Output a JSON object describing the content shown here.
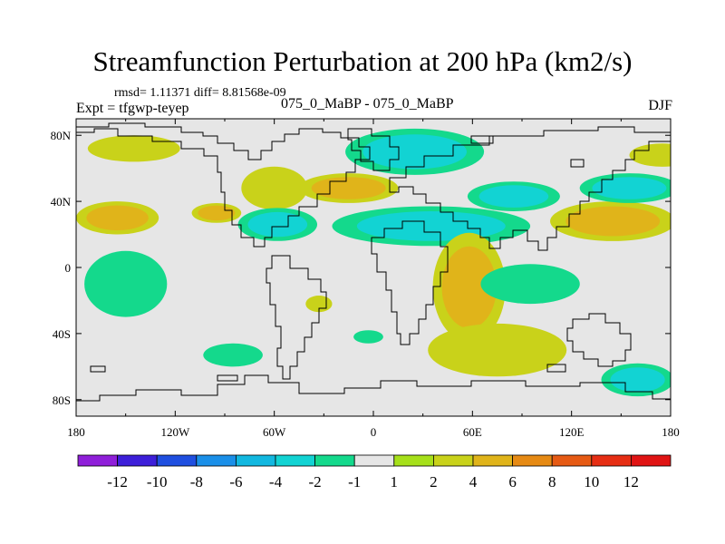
{
  "header": {
    "title": "Streamfunction Perturbation at 200 hPa (km2/s)",
    "stats": "rmsd= 1.11371  diff= 8.81568e-09",
    "experiment": "Expt = tfgwp-teyep",
    "case": "075_0_MaBP - 075_0_MaBP",
    "season": "DJF"
  },
  "chart_data": {
    "type": "heatmap",
    "title": "Streamfunction Perturbation at 200 hPa (km2/s)",
    "xlabel": "",
    "ylabel": "",
    "xlim": [
      -180,
      180
    ],
    "ylim": [
      -90,
      90
    ],
    "x_ticks": [
      -180,
      -120,
      -60,
      0,
      60,
      120,
      180
    ],
    "x_tick_labels": [
      "180",
      "120W",
      "60W",
      "0",
      "60E",
      "120E",
      "180"
    ],
    "y_ticks": [
      80,
      40,
      0,
      -40,
      -80
    ],
    "y_tick_labels": [
      "80N",
      "40N",
      "0",
      "40S",
      "80S"
    ],
    "background_color": "#e6e6e6",
    "colorbar": {
      "levels": [
        "-12",
        "-10",
        "-8",
        "-6",
        "-4",
        "-2",
        "-1",
        "1",
        "2",
        "4",
        "6",
        "8",
        "10",
        "12"
      ],
      "colors": [
        "#8f1fd9",
        "#3d1fd9",
        "#1f4fe0",
        "#1a8fe8",
        "#12b8e0",
        "#12d3d3",
        "#14d98c",
        "#e6e6e6",
        "#a6e01a",
        "#c9d21a",
        "#e0b41a",
        "#e68a14",
        "#e65a14",
        "#e62e14",
        "#e01414"
      ]
    },
    "anomalies": [
      {
        "lon": -155,
        "lat": 30,
        "rx": 25,
        "ry": 10,
        "levels": [
          "2",
          "4"
        ]
      },
      {
        "lon": -145,
        "lat": 72,
        "rx": 28,
        "ry": 8,
        "levels": [
          "2"
        ]
      },
      {
        "lon": -95,
        "lat": 33,
        "rx": 15,
        "ry": 6,
        "levels": [
          "2",
          "4"
        ]
      },
      {
        "lon": -60,
        "lat": 48,
        "rx": 20,
        "ry": 13,
        "levels": [
          "2"
        ]
      },
      {
        "lon": -15,
        "lat": 48,
        "rx": 30,
        "ry": 9,
        "levels": [
          "2",
          "4"
        ]
      },
      {
        "lon": -58,
        "lat": 26,
        "rx": 24,
        "ry": 10,
        "levels": [
          "-1",
          "-2"
        ]
      },
      {
        "lon": 25,
        "lat": 70,
        "rx": 42,
        "ry": 14,
        "levels": [
          "-1",
          "-2"
        ]
      },
      {
        "lon": 35,
        "lat": 25,
        "rx": 60,
        "ry": 12,
        "levels": [
          "-1",
          "-2"
        ]
      },
      {
        "lon": -150,
        "lat": -10,
        "rx": 25,
        "ry": 20,
        "levels": [
          "-1"
        ]
      },
      {
        "lon": -85,
        "lat": -53,
        "rx": 18,
        "ry": 7,
        "levels": [
          "-1"
        ]
      },
      {
        "lon": -33,
        "lat": -22,
        "rx": 8,
        "ry": 5,
        "levels": [
          "2"
        ]
      },
      {
        "lon": -3,
        "lat": -42,
        "rx": 9,
        "ry": 4,
        "levels": [
          "-1"
        ]
      },
      {
        "lon": 58,
        "lat": -12,
        "rx": 22,
        "ry": 33,
        "levels": [
          "2",
          "4"
        ]
      },
      {
        "lon": 75,
        "lat": -50,
        "rx": 42,
        "ry": 16,
        "levels": [
          "2"
        ]
      },
      {
        "lon": 85,
        "lat": 43,
        "rx": 28,
        "ry": 9,
        "levels": [
          "-1",
          "-2"
        ]
      },
      {
        "lon": 95,
        "lat": -10,
        "rx": 30,
        "ry": 12,
        "levels": [
          "-1"
        ]
      },
      {
        "lon": 145,
        "lat": 28,
        "rx": 38,
        "ry": 12,
        "levels": [
          "2",
          "4"
        ]
      },
      {
        "lon": 155,
        "lat": 48,
        "rx": 30,
        "ry": 9,
        "levels": [
          "-1",
          "-2"
        ]
      },
      {
        "lon": 175,
        "lat": 68,
        "rx": 20,
        "ry": 7,
        "levels": [
          "2"
        ]
      },
      {
        "lon": 160,
        "lat": -68,
        "rx": 22,
        "ry": 10,
        "levels": [
          "-1",
          "-2"
        ]
      }
    ]
  }
}
